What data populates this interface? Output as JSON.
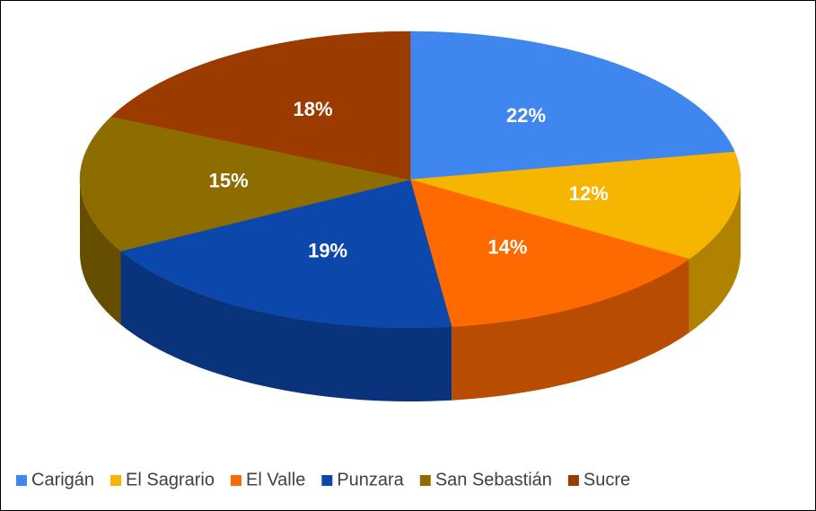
{
  "chart_data": {
    "type": "pie",
    "categories": [
      "Carigán",
      "El Sagrario",
      "El Valle",
      "Punzara",
      "San Sebastián",
      "Sucre"
    ],
    "values": [
      22,
      12,
      14,
      19,
      15,
      18
    ],
    "value_labels": [
      "22%",
      "12%",
      "14%",
      "19%",
      "15%",
      "18%"
    ],
    "colors": [
      "#3f86ee",
      "#f6b500",
      "#ff6a00",
      "#0c48ab",
      "#8d6c00",
      "#9c3b00"
    ],
    "legend": "bottom"
  }
}
